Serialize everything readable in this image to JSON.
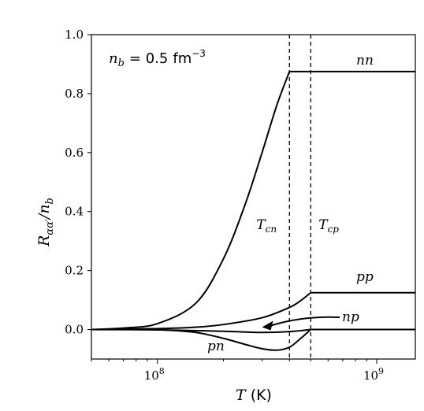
{
  "chart_data": {
    "type": "line",
    "xscale": "log",
    "xlim": [
      50000000,
      1500000000
    ],
    "ylim": [
      -0.1,
      1.0
    ],
    "grid": false,
    "xlabel": {
      "var": "T",
      "unit": "(K)"
    },
    "ylabel": {
      "main": "R",
      "sub": "αα′",
      "rest": "/n",
      "rest_sub": "b"
    },
    "text_annotation": {
      "lhs": "n",
      "lhs_sub": "b",
      "rhs": "= 0.5",
      "unit": "fm",
      "unit_exp": "−3"
    },
    "x_ticks": [
      {
        "value": 100000000,
        "base": "10",
        "exp": "8"
      },
      {
        "value": 1000000000,
        "base": "10",
        "exp": "9"
      }
    ],
    "y_ticks": [
      {
        "value": 0.0,
        "label": "0.0"
      },
      {
        "value": 0.2,
        "label": "0.2"
      },
      {
        "value": 0.4,
        "label": "0.4"
      },
      {
        "value": 0.6,
        "label": "0.6"
      },
      {
        "value": 0.8,
        "label": "0.8"
      },
      {
        "value": 1.0,
        "label": "1.0"
      }
    ],
    "vertical_lines": [
      {
        "x": 400000000,
        "label": "T",
        "label_sub": "cn"
      },
      {
        "x": 500000000,
        "label": "T",
        "label_sub": "cp"
      }
    ],
    "series": [
      {
        "name": "nn",
        "x": [
          50000000,
          70000000,
          100000000,
          150000000,
          200000000,
          250000000,
          300000000,
          350000000,
          400000000,
          500000000,
          1000000000,
          1500000000
        ],
        "y": [
          0.0,
          0.005,
          0.02,
          0.09,
          0.24,
          0.42,
          0.6,
          0.76,
          0.875,
          0.875,
          0.875,
          0.875
        ]
      },
      {
        "name": "pp",
        "x": [
          50000000,
          100000000,
          150000000,
          200000000,
          300000000,
          400000000,
          450000000,
          500000000,
          1000000000,
          1500000000
        ],
        "y": [
          0.0,
          0.003,
          0.008,
          0.017,
          0.04,
          0.075,
          0.098,
          0.125,
          0.125,
          0.125
        ]
      },
      {
        "name": "np",
        "x": [
          50000000,
          100000000,
          200000000,
          300000000,
          400000000,
          500000000,
          1000000000,
          1500000000
        ],
        "y": [
          0.0,
          -0.001,
          -0.006,
          -0.01,
          -0.007,
          0.0,
          0.0,
          0.0
        ]
      },
      {
        "name": "pn",
        "x": [
          50000000,
          100000000,
          150000000,
          200000000,
          250000000,
          300000000,
          350000000,
          400000000,
          450000000,
          500000000,
          1000000000,
          1500000000
        ],
        "y": [
          0.0,
          -0.001,
          -0.01,
          -0.03,
          -0.05,
          -0.065,
          -0.07,
          -0.06,
          -0.03,
          0.0,
          0.0,
          0.0
        ]
      }
    ],
    "annotations": [
      {
        "text": "nn",
        "x": 1050000000,
        "y": 0.9
      },
      {
        "text": "pp",
        "x": 1050000000,
        "y": 0.15
      },
      {
        "text": "np",
        "x": 1050000000,
        "y": 0.04,
        "arrow_to": {
          "x": 300000000,
          "y": 0.0
        }
      },
      {
        "text": "pn",
        "x": 230000000,
        "y": -0.07
      }
    ]
  }
}
